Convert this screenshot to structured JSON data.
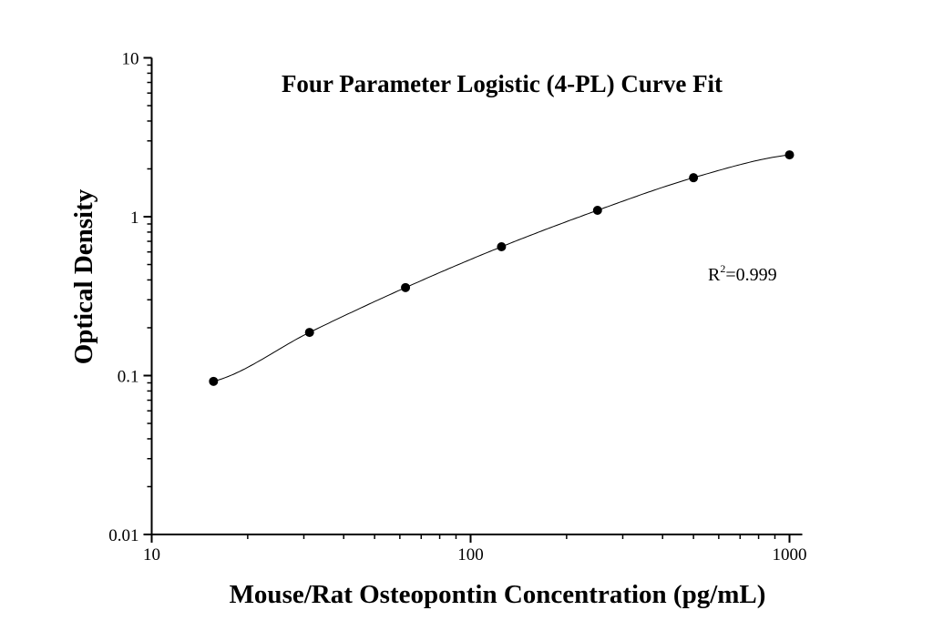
{
  "chart_data": {
    "type": "scatter",
    "title": "Four Parameter Logistic (4-PL) Curve Fit",
    "xlabel": "Mouse/Rat Osteopontin Concentration (pg/mL)",
    "ylabel": "Optical Density",
    "xscale": "log",
    "yscale": "log",
    "xlim": [
      10,
      1000
    ],
    "ylim": [
      0.01,
      10
    ],
    "xticks": [
      "10",
      "100",
      "1000"
    ],
    "yticks": [
      "0.01",
      "0.1",
      "1",
      "10"
    ],
    "grid": false,
    "annotation": {
      "base": "R",
      "sup": "2",
      "rest": "=0.999"
    },
    "fit": "4-PL curve",
    "x": [
      15.625,
      31.25,
      62.5,
      125,
      250,
      500,
      1000
    ],
    "y": [
      0.092,
      0.187,
      0.358,
      0.647,
      1.097,
      1.76,
      2.45
    ],
    "colors": {
      "points": "#000000",
      "curve": "#000000"
    }
  }
}
